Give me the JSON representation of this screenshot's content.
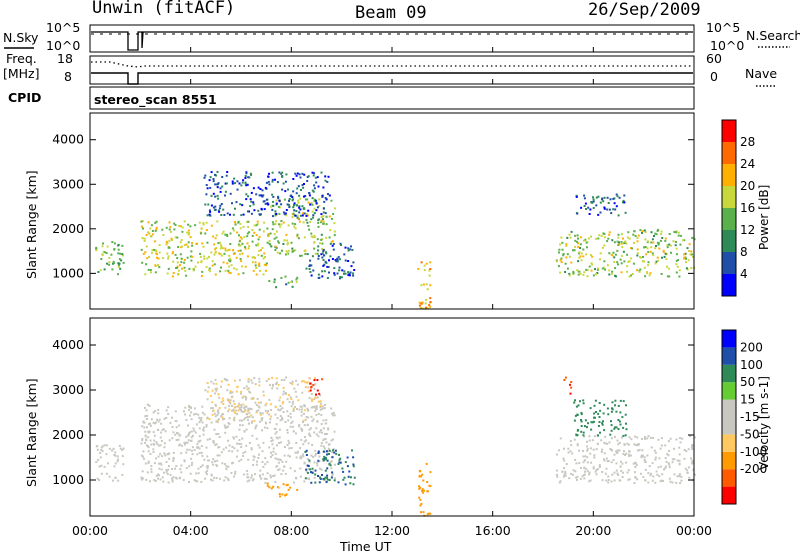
{
  "header": {
    "station": "Unwin (fitACF)",
    "beam": "Beam 09",
    "date": "26/Sep/2009"
  },
  "panels": {
    "nsky": {
      "left_label": "N.Sky",
      "left_ticks": [
        "10^5",
        "10^0"
      ],
      "right_ticks": [
        "10^5",
        "10^0"
      ],
      "right_label": "N.Search"
    },
    "freq": {
      "left_label": "Freq.",
      "left_unit": "[MHz]",
      "left_ticks": [
        "18",
        "8"
      ],
      "right_ticks": [
        "60",
        "0"
      ],
      "right_label": "Nave"
    },
    "cpid": {
      "label": "CPID",
      "value": "stereo_scan 8551"
    }
  },
  "colors": {
    "power_scale": [
      "#0000ff",
      "#1f4fa8",
      "#2e8b57",
      "#5ab04a",
      "#c8d83a",
      "#ffb000",
      "#ff6a00",
      "#ff0000"
    ],
    "velocity_scale": [
      "#ff0000",
      "#ff5a00",
      "#ff9a00",
      "#ffc860",
      "#c8c8c0",
      "#c8c8c0",
      "#66cc33",
      "#2e8b57",
      "#1f4fa8",
      "#0000ff"
    ]
  },
  "chart_data": [
    {
      "type": "heatmap",
      "name": "power",
      "ylabel": "Slant Range [km]",
      "xlabel": "Time UT",
      "x_ticks": [
        "00:00",
        "04:00",
        "08:00",
        "12:00",
        "16:00",
        "20:00",
        "00:00"
      ],
      "x_range_hours": [
        0,
        24
      ],
      "y_ticks": [
        1000,
        2000,
        3000,
        4000
      ],
      "y_range": [
        200,
        4600
      ],
      "colorbar": {
        "label": "Power [dB]",
        "ticks": [
          4,
          8,
          12,
          16,
          20,
          24,
          28
        ],
        "range": [
          0,
          32
        ]
      },
      "data_gaps_hours": [
        [
          1.3,
          2.0
        ]
      ],
      "regions": [
        {
          "t_start": 0.2,
          "t_end": 1.3,
          "range_low": 1000,
          "range_high": 1800,
          "power": 14
        },
        {
          "t_start": 2.0,
          "t_end": 7.0,
          "range_low": 950,
          "range_high": 2200,
          "power": 18
        },
        {
          "t_start": 7.0,
          "t_end": 9.7,
          "range_low": 1400,
          "range_high": 2700,
          "power": 16
        },
        {
          "t_start": 4.5,
          "t_end": 9.5,
          "range_low": 2300,
          "range_high": 3300,
          "power": 6
        },
        {
          "t_start": 7.0,
          "t_end": 8.2,
          "range_low": 700,
          "range_high": 950,
          "power": 12
        },
        {
          "t_start": 8.5,
          "t_end": 10.5,
          "range_low": 900,
          "range_high": 1700,
          "power": 7
        },
        {
          "t_start": 13.0,
          "t_end": 13.5,
          "range_low": 200,
          "range_high": 1400,
          "power": 22
        },
        {
          "t_start": 18.5,
          "t_end": 24.0,
          "range_low": 950,
          "range_high": 2000,
          "power": 16
        },
        {
          "t_start": 19.2,
          "t_end": 21.3,
          "range_low": 2300,
          "range_high": 2800,
          "power": 7
        }
      ]
    },
    {
      "type": "heatmap",
      "name": "velocity",
      "ylabel": "Slant Range [km]",
      "xlabel": "Time UT",
      "x_ticks": [
        "00:00",
        "04:00",
        "08:00",
        "12:00",
        "16:00",
        "20:00",
        "00:00"
      ],
      "x_range_hours": [
        0,
        24
      ],
      "y_ticks": [
        1000,
        2000,
        3000,
        4000
      ],
      "y_range": [
        200,
        4600
      ],
      "colorbar": {
        "label": "Velocity [m s-1]",
        "ticks": [
          200,
          100,
          50,
          15,
          -15,
          -50,
          -100,
          -200
        ],
        "range": [
          -250,
          250
        ]
      },
      "regions": [
        {
          "t_start": 0.2,
          "t_end": 1.3,
          "range_low": 1000,
          "range_high": 1800,
          "velocity": 0
        },
        {
          "t_start": 2.0,
          "t_end": 9.7,
          "range_low": 950,
          "range_high": 2700,
          "velocity": 0
        },
        {
          "t_start": 4.5,
          "t_end": 9.2,
          "range_low": 2300,
          "range_high": 3300,
          "velocity": -10
        },
        {
          "t_start": 8.6,
          "t_end": 9.2,
          "range_low": 2900,
          "range_high": 3300,
          "velocity": -200
        },
        {
          "t_start": 7.0,
          "t_end": 8.2,
          "range_low": 650,
          "range_high": 950,
          "velocity": -60
        },
        {
          "t_start": 8.5,
          "t_end": 10.5,
          "range_low": 900,
          "range_high": 1700,
          "velocity": 100
        },
        {
          "t_start": 13.0,
          "t_end": 13.5,
          "range_low": 200,
          "range_high": 1400,
          "velocity": -80
        },
        {
          "t_start": 18.5,
          "t_end": 24.0,
          "range_low": 950,
          "range_high": 2000,
          "velocity": 0
        },
        {
          "t_start": 19.2,
          "t_end": 21.3,
          "range_low": 2000,
          "range_high": 2800,
          "velocity": 70
        },
        {
          "t_start": 18.8,
          "t_end": 19.1,
          "range_low": 2900,
          "range_high": 3300,
          "velocity": -200
        }
      ]
    }
  ]
}
